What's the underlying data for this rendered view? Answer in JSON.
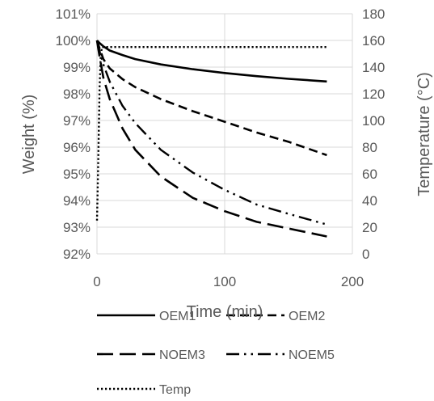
{
  "chart_data": {
    "type": "line",
    "xlabel": "Time (min)",
    "ylabel_left": "Weight (%)",
    "ylabel_right": "Temperature (°C)",
    "xlim": [
      0,
      200
    ],
    "ylim_left": [
      92,
      101
    ],
    "ylim_right": [
      0,
      180
    ],
    "x_ticks": [
      "0",
      "100",
      "200"
    ],
    "y_ticks_left": [
      "92%",
      "93%",
      "94%",
      "95%",
      "96%",
      "97%",
      "98%",
      "99%",
      "100%",
      "101%"
    ],
    "y_ticks_right": [
      "0",
      "20",
      "40",
      "60",
      "80",
      "100",
      "120",
      "140",
      "160",
      "180"
    ],
    "grid": true,
    "legend_position": "bottom",
    "series": [
      {
        "name": "OEM1",
        "axis": "left",
        "style": "solid",
        "x": [
          0,
          2,
          5,
          10,
          20,
          30,
          50,
          75,
          100,
          125,
          150,
          180
        ],
        "y": [
          100.0,
          99.9,
          99.78,
          99.62,
          99.45,
          99.3,
          99.1,
          98.92,
          98.78,
          98.66,
          98.56,
          98.46
        ]
      },
      {
        "name": "OEM2",
        "axis": "left",
        "style": "dash",
        "x": [
          0,
          2,
          5,
          10,
          20,
          30,
          50,
          75,
          100,
          125,
          150,
          180
        ],
        "y": [
          100.0,
          99.7,
          99.3,
          98.95,
          98.55,
          98.25,
          97.8,
          97.35,
          96.95,
          96.55,
          96.2,
          95.7
        ]
      },
      {
        "name": "NOEM3",
        "axis": "left",
        "style": "longdash",
        "x": [
          0,
          2,
          5,
          10,
          20,
          30,
          50,
          75,
          100,
          125,
          150,
          180
        ],
        "y": [
          100.0,
          99.4,
          98.6,
          97.8,
          96.7,
          95.9,
          94.9,
          94.1,
          93.6,
          93.2,
          92.95,
          92.65
        ]
      },
      {
        "name": "NOEM5",
        "axis": "left",
        "style": "dashdotdot",
        "x": [
          0,
          2,
          5,
          10,
          20,
          30,
          50,
          75,
          100,
          125,
          150,
          180
        ],
        "y": [
          100.0,
          99.6,
          99.1,
          98.45,
          97.55,
          96.9,
          95.9,
          95.05,
          94.4,
          93.85,
          93.5,
          93.1
        ]
      },
      {
        "name": "Temp",
        "axis": "right",
        "style": "dot",
        "x": [
          0,
          1,
          2,
          3,
          4,
          5,
          8,
          12,
          20,
          50,
          100,
          150,
          180
        ],
        "y": [
          25,
          70,
          125,
          150,
          155,
          155,
          155,
          155,
          155,
          155,
          155,
          155,
          155
        ]
      }
    ]
  }
}
